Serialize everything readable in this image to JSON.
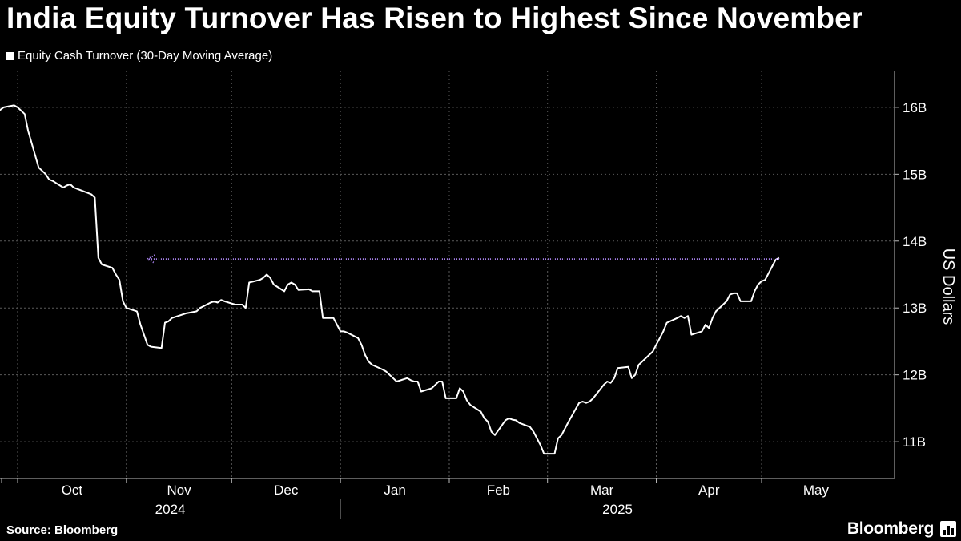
{
  "header": {
    "title": "India Equity Turnover Has Risen to Highest Since November"
  },
  "footer": {
    "source": "Source: Bloomberg",
    "brand": "Bloomberg"
  },
  "colors": {
    "background": "#000000",
    "line": "#ffffff",
    "grid": "#5a5a5a",
    "annotation_arrow": "#b58cff"
  },
  "chart_data": {
    "type": "line",
    "title": "India Equity Turnover Has Risen to Highest Since November",
    "ylabel": "US Dollars",
    "ylim": [
      10.45,
      16.55
    ],
    "y_axis_position": "right",
    "yticks": [
      11,
      12,
      13,
      14,
      15,
      16
    ],
    "ytick_labels": [
      "11B",
      "12B",
      "13B",
      "14B",
      "15B",
      "16B"
    ],
    "x_tick_labels": [
      "Oct",
      "Nov",
      "Dec",
      "Jan",
      "Feb",
      "Mar",
      "Apr",
      "May"
    ],
    "x_year_labels": [
      "2024",
      "2025"
    ],
    "grid": true,
    "legend": "top-left",
    "series": [
      {
        "name": "Equity Cash Turnover (30-Day Moving Average)",
        "points": [
          [
            "2024-09-23",
            15.9
          ],
          [
            "2024-09-24",
            15.85
          ],
          [
            "2024-09-25",
            15.92
          ],
          [
            "2024-09-26",
            15.96
          ],
          [
            "2024-09-27",
            16.0
          ],
          [
            "2024-09-30",
            16.03
          ],
          [
            "2024-10-01",
            16.0
          ],
          [
            "2024-10-03",
            15.9
          ],
          [
            "2024-10-04",
            15.65
          ],
          [
            "2024-10-07",
            15.1
          ],
          [
            "2024-10-08",
            15.05
          ],
          [
            "2024-10-09",
            15.0
          ],
          [
            "2024-10-10",
            14.92
          ],
          [
            "2024-10-11",
            14.9
          ],
          [
            "2024-10-14",
            14.8
          ],
          [
            "2024-10-15",
            14.83
          ],
          [
            "2024-10-16",
            14.85
          ],
          [
            "2024-10-17",
            14.8
          ],
          [
            "2024-10-18",
            14.78
          ],
          [
            "2024-10-21",
            14.72
          ],
          [
            "2024-10-22",
            14.7
          ],
          [
            "2024-10-23",
            14.65
          ],
          [
            "2024-10-24",
            13.75
          ],
          [
            "2024-10-25",
            13.65
          ],
          [
            "2024-10-28",
            13.6
          ],
          [
            "2024-10-29",
            13.5
          ],
          [
            "2024-10-30",
            13.42
          ],
          [
            "2024-10-31",
            13.1
          ],
          [
            "2024-11-01",
            13.0
          ],
          [
            "2024-11-04",
            12.95
          ],
          [
            "2024-11-05",
            12.75
          ],
          [
            "2024-11-06",
            12.6
          ],
          [
            "2024-11-07",
            12.45
          ],
          [
            "2024-11-08",
            12.42
          ],
          [
            "2024-11-11",
            12.4
          ],
          [
            "2024-11-12",
            12.78
          ],
          [
            "2024-11-13",
            12.8
          ],
          [
            "2024-11-14",
            12.85
          ],
          [
            "2024-11-18",
            12.92
          ],
          [
            "2024-11-19",
            12.93
          ],
          [
            "2024-11-21",
            12.95
          ],
          [
            "2024-11-22",
            13.0
          ],
          [
            "2024-11-25",
            13.08
          ],
          [
            "2024-11-26",
            13.1
          ],
          [
            "2024-11-27",
            13.08
          ],
          [
            "2024-11-28",
            13.12
          ],
          [
            "2024-11-29",
            13.1
          ],
          [
            "2024-12-02",
            13.05
          ],
          [
            "2024-12-03",
            13.05
          ],
          [
            "2024-12-04",
            13.05
          ],
          [
            "2024-12-05",
            13.0
          ],
          [
            "2024-12-06",
            13.38
          ],
          [
            "2024-12-09",
            13.42
          ],
          [
            "2024-12-10",
            13.45
          ],
          [
            "2024-12-11",
            13.5
          ],
          [
            "2024-12-12",
            13.45
          ],
          [
            "2024-12-13",
            13.35
          ],
          [
            "2024-12-16",
            13.25
          ],
          [
            "2024-12-17",
            13.35
          ],
          [
            "2024-12-18",
            13.38
          ],
          [
            "2024-12-19",
            13.35
          ],
          [
            "2024-12-20",
            13.27
          ],
          [
            "2024-12-23",
            13.28
          ],
          [
            "2024-12-24",
            13.25
          ],
          [
            "2024-12-26",
            13.25
          ],
          [
            "2024-12-27",
            12.85
          ],
          [
            "2024-12-30",
            12.85
          ],
          [
            "2024-12-31",
            12.75
          ],
          [
            "2025-01-01",
            12.65
          ],
          [
            "2025-01-02",
            12.65
          ],
          [
            "2025-01-03",
            12.63
          ],
          [
            "2025-01-06",
            12.55
          ],
          [
            "2025-01-07",
            12.45
          ],
          [
            "2025-01-08",
            12.3
          ],
          [
            "2025-01-09",
            12.2
          ],
          [
            "2025-01-10",
            12.15
          ],
          [
            "2025-01-13",
            12.08
          ],
          [
            "2025-01-14",
            12.05
          ],
          [
            "2025-01-15",
            12.0
          ],
          [
            "2025-01-16",
            11.95
          ],
          [
            "2025-01-17",
            11.9
          ],
          [
            "2025-01-20",
            11.95
          ],
          [
            "2025-01-21",
            11.92
          ],
          [
            "2025-01-22",
            11.9
          ],
          [
            "2025-01-23",
            11.9
          ],
          [
            "2025-01-24",
            11.75
          ],
          [
            "2025-01-27",
            11.8
          ],
          [
            "2025-01-28",
            11.85
          ],
          [
            "2025-01-29",
            11.9
          ],
          [
            "2025-01-30",
            11.9
          ],
          [
            "2025-01-31",
            11.65
          ],
          [
            "2025-02-03",
            11.65
          ],
          [
            "2025-02-04",
            11.8
          ],
          [
            "2025-02-05",
            11.75
          ],
          [
            "2025-02-06",
            11.62
          ],
          [
            "2025-02-07",
            11.55
          ],
          [
            "2025-02-10",
            11.45
          ],
          [
            "2025-02-11",
            11.35
          ],
          [
            "2025-02-12",
            11.3
          ],
          [
            "2025-02-13",
            11.15
          ],
          [
            "2025-02-14",
            11.1
          ],
          [
            "2025-02-17",
            11.32
          ],
          [
            "2025-02-18",
            11.35
          ],
          [
            "2025-02-19",
            11.33
          ],
          [
            "2025-02-20",
            11.32
          ],
          [
            "2025-02-21",
            11.28
          ],
          [
            "2025-02-24",
            11.22
          ],
          [
            "2025-02-25",
            11.15
          ],
          [
            "2025-02-26",
            11.05
          ],
          [
            "2025-02-27",
            10.95
          ],
          [
            "2025-02-28",
            10.82
          ],
          [
            "2025-03-03",
            10.82
          ],
          [
            "2025-03-04",
            11.05
          ],
          [
            "2025-03-05",
            11.1
          ],
          [
            "2025-03-06",
            11.2
          ],
          [
            "2025-03-07",
            11.3
          ],
          [
            "2025-03-10",
            11.58
          ],
          [
            "2025-03-11",
            11.6
          ],
          [
            "2025-03-12",
            11.58
          ],
          [
            "2025-03-13",
            11.6
          ],
          [
            "2025-03-14",
            11.65
          ],
          [
            "2025-03-17",
            11.85
          ],
          [
            "2025-03-18",
            11.9
          ],
          [
            "2025-03-19",
            11.88
          ],
          [
            "2025-03-20",
            11.95
          ],
          [
            "2025-03-21",
            12.1
          ],
          [
            "2025-03-24",
            12.12
          ],
          [
            "2025-03-25",
            11.95
          ],
          [
            "2025-03-26",
            12.0
          ],
          [
            "2025-03-27",
            12.15
          ],
          [
            "2025-03-28",
            12.2
          ],
          [
            "2025-03-31",
            12.35
          ],
          [
            "2025-04-01",
            12.45
          ],
          [
            "2025-04-02",
            12.55
          ],
          [
            "2025-04-03",
            12.65
          ],
          [
            "2025-04-04",
            12.78
          ],
          [
            "2025-04-07",
            12.85
          ],
          [
            "2025-04-08",
            12.88
          ],
          [
            "2025-04-09",
            12.85
          ],
          [
            "2025-04-10",
            12.88
          ],
          [
            "2025-04-11",
            12.6
          ],
          [
            "2025-04-14",
            12.65
          ],
          [
            "2025-04-15",
            12.75
          ],
          [
            "2025-04-16",
            12.7
          ],
          [
            "2025-04-17",
            12.85
          ],
          [
            "2025-04-18",
            12.95
          ],
          [
            "2025-04-21",
            13.1
          ],
          [
            "2025-04-22",
            13.2
          ],
          [
            "2025-04-23",
            13.22
          ],
          [
            "2025-04-24",
            13.22
          ],
          [
            "2025-04-25",
            13.1
          ],
          [
            "2025-04-28",
            13.1
          ],
          [
            "2025-04-29",
            13.25
          ],
          [
            "2025-04-30",
            13.35
          ],
          [
            "2025-05-01",
            13.4
          ],
          [
            "2025-05-02",
            13.42
          ],
          [
            "2025-05-05",
            13.72
          ],
          [
            "2025-05-06",
            13.75
          ]
        ]
      }
    ],
    "annotations": [
      {
        "type": "arrow",
        "y": 13.73,
        "x_from": "2025-05-06",
        "x_to": "2024-11-07",
        "style": "dotted"
      }
    ]
  }
}
